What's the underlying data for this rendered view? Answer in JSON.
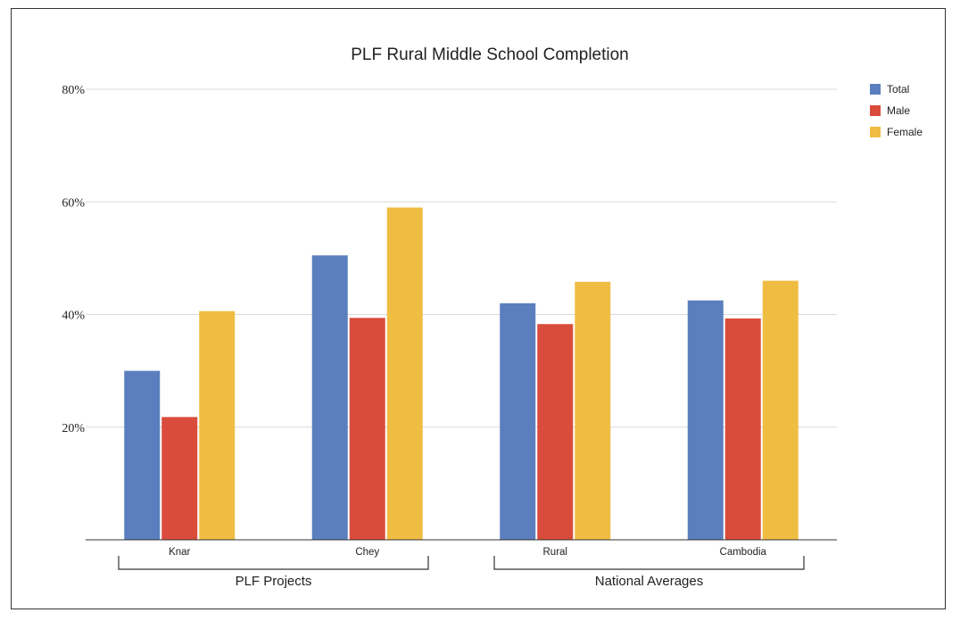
{
  "chart_data": {
    "type": "bar",
    "title": "PLF Rural Middle School Completion",
    "xlabel": "",
    "ylabel": "",
    "ylim": [
      0,
      80
    ],
    "yticks": [
      20,
      40,
      60,
      80
    ],
    "ytick_labels": [
      "20%",
      "40%",
      "60%",
      "80%"
    ],
    "grid": true,
    "legend_position": "right",
    "categories": [
      "Knar",
      "Chey",
      "Rural",
      "Cambodia"
    ],
    "series": [
      {
        "name": "Total",
        "color": "#5b7fbe",
        "values": [
          30,
          50.5,
          42,
          42.5
        ]
      },
      {
        "name": "Male",
        "color": "#d94c3b",
        "values": [
          21.8,
          39.4,
          38.3,
          39.3
        ]
      },
      {
        "name": "Female",
        "color": "#f0bd43",
        "values": [
          40.6,
          59,
          45.8,
          46
        ]
      }
    ],
    "category_groups": [
      {
        "label": "PLF Projects",
        "categories": [
          "Knar",
          "Chey"
        ]
      },
      {
        "label": "National Averages",
        "categories": [
          "Rural",
          "Cambodia"
        ]
      }
    ]
  }
}
